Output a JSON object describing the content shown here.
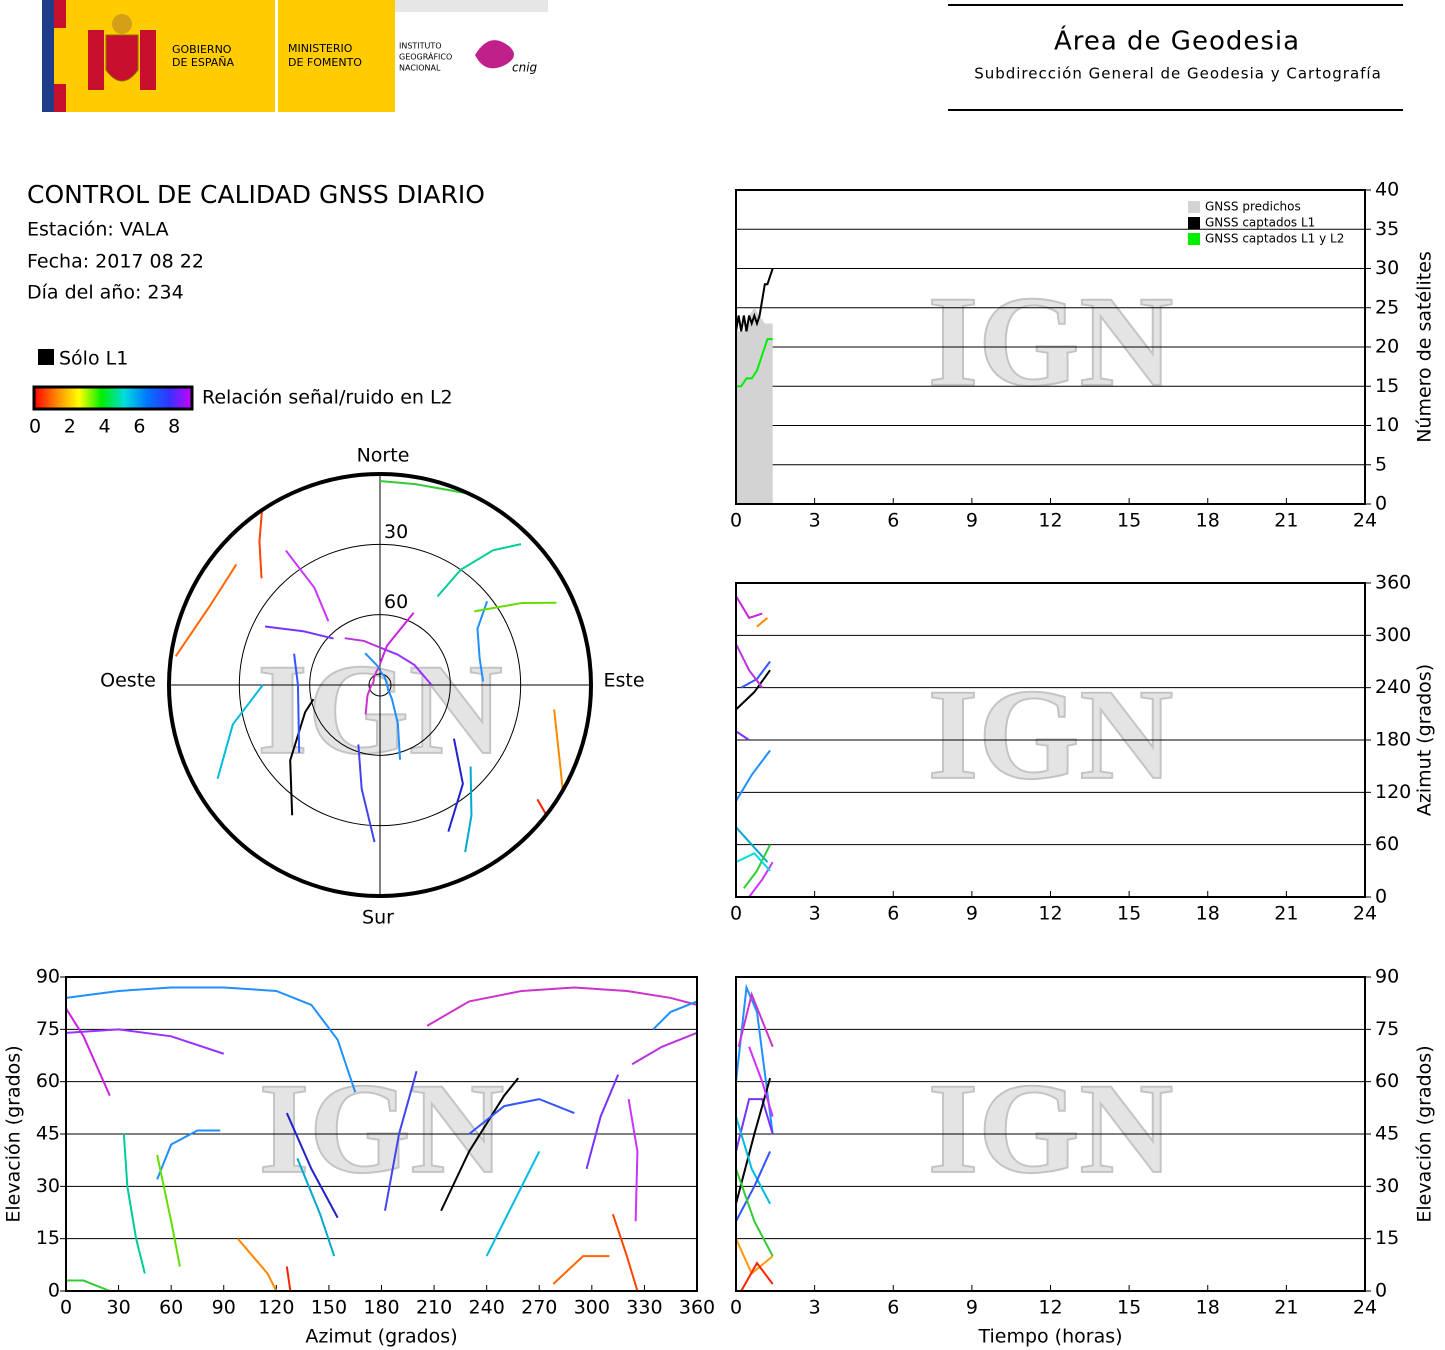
{
  "header": {
    "gobierno": [
      "GOBIERNO",
      "DE ESPAÑA"
    ],
    "ministerio": [
      "MINISTERIO",
      "DE FOMENTO"
    ],
    "instituto": [
      "INSTITUTO",
      "GEOGRÁFICO",
      "NACIONAL"
    ],
    "cnig": "cnig",
    "title": "Área de Geodesia",
    "subtitle": "Subdirección General de Geodesia y Cartografía"
  },
  "info": {
    "title": "CONTROL DE CALIDAD GNSS DIARIO",
    "station": "Estación: VALA",
    "date": "Fecha: 2017 08 22",
    "doy": "Día del año: 234",
    "l1_only": "Sólo L1",
    "snr_label": "Relación señal/ruido en L2",
    "snr_ticks": [
      0,
      2,
      4,
      6,
      8
    ],
    "colorscale": [
      "#ff0000",
      "#ff8800",
      "#ffff00",
      "#00ee00",
      "#00dddd",
      "#0077ff",
      "#3333ff",
      "#cc00ff"
    ]
  },
  "watermark": "IGN",
  "chart_data": [
    {
      "type": "line",
      "ylabel": "Número de satélites",
      "yaxis": "right",
      "xlim": [
        0,
        24
      ],
      "xticks": [
        0,
        3,
        6,
        9,
        12,
        15,
        18,
        21,
        24
      ],
      "ylim": [
        0,
        40
      ],
      "yticks": [
        0,
        5,
        10,
        15,
        20,
        25,
        30,
        35,
        40
      ],
      "grid": true,
      "legend": "upper right",
      "series": [
        {
          "name": "GNSS predichos",
          "color": "#d3d3d3",
          "fill": true,
          "x": [
            0,
            0.1,
            0.3,
            0.5,
            0.7,
            0.9,
            1.1,
            1.3,
            1.4
          ],
          "values": [
            22,
            22,
            22,
            24,
            25,
            24,
            23,
            23,
            23
          ]
        },
        {
          "name": "GNSS captados L1",
          "color": "#000000",
          "x": [
            0,
            0.1,
            0.2,
            0.3,
            0.4,
            0.5,
            0.6,
            0.7,
            0.8,
            0.9,
            1.0,
            1.1,
            1.2,
            1.3,
            1.4
          ],
          "values": [
            22,
            24,
            22,
            24,
            22,
            24,
            23,
            24,
            23,
            24,
            26,
            28,
            28,
            29,
            30
          ]
        },
        {
          "name": "GNSS captados L1 y L2",
          "color": "#00ee00",
          "x": [
            0,
            0.2,
            0.4,
            0.6,
            0.8,
            1.0,
            1.2,
            1.4
          ],
          "values": [
            15,
            15,
            16,
            16,
            17,
            19,
            21,
            21
          ]
        }
      ]
    },
    {
      "type": "line",
      "ylabel": "Azimut (grados)",
      "yaxis": "right",
      "xlim": [
        0,
        24
      ],
      "xticks": [
        0,
        3,
        6,
        9,
        12,
        15,
        18,
        21,
        24
      ],
      "ylim": [
        0,
        360
      ],
      "yticks": [
        0,
        60,
        120,
        180,
        240,
        300,
        360
      ],
      "grid": true,
      "series": [
        {
          "color": "#000000",
          "x": [
            0,
            0.7,
            1.3
          ],
          "values": [
            215,
            235,
            260
          ]
        },
        {
          "color": "#cc22dd",
          "x": [
            0,
            0.5,
            1.0
          ],
          "values": [
            345,
            320,
            325
          ]
        },
        {
          "color": "#3355ff",
          "x": [
            0.2,
            0.8,
            1.3
          ],
          "values": [
            240,
            250,
            270
          ]
        },
        {
          "color": "#bb33dd",
          "x": [
            0,
            0.5,
            1.0
          ],
          "values": [
            290,
            260,
            240
          ]
        },
        {
          "color": "#7733ff",
          "x": [
            0,
            0.5
          ],
          "values": [
            190,
            180
          ]
        },
        {
          "color": "#1e90ff",
          "x": [
            0,
            0.6,
            1.3
          ],
          "values": [
            110,
            140,
            168
          ]
        },
        {
          "color": "#00aacc",
          "x": [
            0,
            0.6,
            1.2
          ],
          "values": [
            80,
            60,
            40
          ]
        },
        {
          "color": "#33cc33",
          "x": [
            0.3,
            0.8,
            1.3
          ],
          "values": [
            10,
            30,
            60
          ]
        },
        {
          "color": "#cc33ff",
          "x": [
            0.5,
            1.0,
            1.4
          ],
          "values": [
            0,
            20,
            40
          ]
        },
        {
          "color": "#ff8800",
          "x": [
            0.8,
            1.2
          ],
          "values": [
            310,
            320
          ]
        },
        {
          "color": "#00dddd",
          "x": [
            0,
            0.7,
            1.3
          ],
          "values": [
            40,
            50,
            30
          ]
        }
      ]
    },
    {
      "type": "polar",
      "directions": [
        "Norte",
        "Este",
        "Sur",
        "Oeste"
      ],
      "rlim": [
        0,
        90
      ],
      "rticks": [
        30,
        60
      ],
      "series": [
        {
          "color": "#1e90ff",
          "x": [
            0,
            30,
            60,
            90,
            120,
            140,
            155,
            165
          ],
          "values": [
            84,
            86,
            87,
            87,
            86,
            82,
            72,
            57
          ]
        },
        {
          "color": "#cc33cc",
          "x": [
            206,
            230,
            260,
            290,
            320,
            345,
            360
          ],
          "values": [
            76,
            83,
            86,
            87,
            86,
            84,
            82
          ]
        },
        {
          "color": "#cc22dd",
          "x": [
            0,
            10,
            25
          ],
          "values": [
            81,
            73,
            56
          ]
        },
        {
          "color": "#9933ff",
          "x": [
            0,
            30,
            60,
            90
          ],
          "values": [
            74,
            75,
            73,
            68
          ]
        },
        {
          "color": "#1e90ff",
          "x": [
            335,
            345,
            360
          ],
          "values": [
            75,
            80,
            83
          ]
        },
        {
          "color": "#bb33dd",
          "x": [
            323,
            340,
            360
          ],
          "values": [
            65,
            70,
            74
          ]
        },
        {
          "color": "#000000",
          "x": [
            214,
            230,
            250,
            258
          ],
          "values": [
            23,
            40,
            56,
            61
          ]
        },
        {
          "color": "#3355ff",
          "x": [
            230,
            250,
            270,
            290
          ],
          "values": [
            45,
            53,
            55,
            51
          ]
        },
        {
          "color": "#2222cc",
          "x": [
            126,
            140,
            155
          ],
          "values": [
            51,
            35,
            21
          ]
        },
        {
          "color": "#4444ee",
          "x": [
            182,
            190,
            200
          ],
          "values": [
            23,
            45,
            63
          ]
        },
        {
          "color": "#1e90ff",
          "x": [
            52,
            60,
            75,
            88
          ],
          "values": [
            32,
            42,
            46,
            46
          ]
        },
        {
          "color": "#00cc99",
          "x": [
            33,
            35,
            40,
            45
          ],
          "values": [
            45,
            30,
            15,
            5
          ]
        },
        {
          "color": "#66dd00",
          "x": [
            52,
            60,
            65
          ],
          "values": [
            39,
            20,
            7
          ]
        },
        {
          "color": "#00bbdd",
          "x": [
            240,
            255,
            270
          ],
          "values": [
            10,
            25,
            40
          ]
        },
        {
          "color": "#7733ff",
          "x": [
            297,
            305,
            315
          ],
          "values": [
            35,
            50,
            62
          ]
        },
        {
          "color": "#cc33ff",
          "x": [
            321,
            326,
            325
          ],
          "values": [
            55,
            40,
            20
          ]
        },
        {
          "color": "#ff4400",
          "x": [
            312,
            320,
            326
          ],
          "values": [
            22,
            10,
            0
          ]
        },
        {
          "color": "#ff6600",
          "x": [
            278,
            295,
            310
          ],
          "values": [
            2,
            10,
            10
          ]
        },
        {
          "color": "#33cc33",
          "x": [
            0,
            10,
            25
          ],
          "values": [
            3,
            3,
            0
          ]
        },
        {
          "color": "#ff8800",
          "x": [
            98,
            115,
            120
          ],
          "values": [
            15,
            5,
            0
          ]
        },
        {
          "color": "#ff2200",
          "x": [
            126,
            128
          ],
          "values": [
            7,
            0
          ]
        },
        {
          "color": "#00aacc",
          "x": [
            132,
            145,
            153
          ],
          "values": [
            38,
            22,
            10
          ]
        }
      ]
    },
    {
      "type": "line",
      "xlabel": "Azimut (grados)",
      "ylabel": "Elevación (grados)",
      "yaxis": "left",
      "xlim": [
        0,
        360
      ],
      "xticks": [
        0,
        30,
        60,
        90,
        120,
        150,
        180,
        210,
        240,
        270,
        300,
        330,
        360
      ],
      "ylim": [
        0,
        90
      ],
      "yticks": [
        0,
        15,
        30,
        45,
        60,
        75,
        90
      ],
      "grid": true,
      "series": [
        {
          "color": "#1e90ff",
          "x": [
            0,
            30,
            60,
            90,
            120,
            140,
            155,
            165
          ],
          "values": [
            84,
            86,
            87,
            87,
            86,
            82,
            72,
            57
          ]
        },
        {
          "color": "#cc33cc",
          "x": [
            206,
            230,
            260,
            290,
            320,
            345,
            360
          ],
          "values": [
            76,
            83,
            86,
            87,
            86,
            84,
            82
          ]
        },
        {
          "color": "#cc22dd",
          "x": [
            0,
            10,
            25
          ],
          "values": [
            81,
            73,
            56
          ]
        },
        {
          "color": "#9933ff",
          "x": [
            0,
            30,
            60,
            90
          ],
          "values": [
            74,
            75,
            73,
            68
          ]
        },
        {
          "color": "#1e90ff",
          "x": [
            335,
            345,
            360
          ],
          "values": [
            75,
            80,
            83
          ]
        },
        {
          "color": "#bb33dd",
          "x": [
            323,
            340,
            360
          ],
          "values": [
            65,
            70,
            74
          ]
        },
        {
          "color": "#000000",
          "x": [
            214,
            230,
            250,
            258
          ],
          "values": [
            23,
            40,
            56,
            61
          ]
        },
        {
          "color": "#3355ff",
          "x": [
            230,
            250,
            270,
            290
          ],
          "values": [
            45,
            53,
            55,
            51
          ]
        },
        {
          "color": "#2222cc",
          "x": [
            126,
            140,
            155
          ],
          "values": [
            51,
            35,
            21
          ]
        },
        {
          "color": "#4444ee",
          "x": [
            182,
            190,
            200
          ],
          "values": [
            23,
            45,
            63
          ]
        },
        {
          "color": "#1e90ff",
          "x": [
            52,
            60,
            75,
            88
          ],
          "values": [
            32,
            42,
            46,
            46
          ]
        },
        {
          "color": "#00cc99",
          "x": [
            33,
            35,
            40,
            45
          ],
          "values": [
            45,
            30,
            15,
            5
          ]
        },
        {
          "color": "#66dd00",
          "x": [
            52,
            60,
            65
          ],
          "values": [
            39,
            20,
            7
          ]
        },
        {
          "color": "#00bbdd",
          "x": [
            240,
            255,
            270
          ],
          "values": [
            10,
            25,
            40
          ]
        },
        {
          "color": "#7733ff",
          "x": [
            297,
            305,
            315
          ],
          "values": [
            35,
            50,
            62
          ]
        },
        {
          "color": "#cc33ff",
          "x": [
            321,
            326,
            325
          ],
          "values": [
            55,
            40,
            20
          ]
        },
        {
          "color": "#ff4400",
          "x": [
            312,
            320,
            326
          ],
          "values": [
            22,
            10,
            0
          ]
        },
        {
          "color": "#ff6600",
          "x": [
            278,
            295,
            310
          ],
          "values": [
            2,
            10,
            10
          ]
        },
        {
          "color": "#33cc33",
          "x": [
            0,
            10,
            25
          ],
          "values": [
            3,
            3,
            0
          ]
        },
        {
          "color": "#ff8800",
          "x": [
            98,
            115,
            120
          ],
          "values": [
            15,
            5,
            0
          ]
        },
        {
          "color": "#ff2200",
          "x": [
            126,
            128
          ],
          "values": [
            7,
            0
          ]
        },
        {
          "color": "#00aacc",
          "x": [
            132,
            145,
            153
          ],
          "values": [
            38,
            22,
            10
          ]
        }
      ]
    },
    {
      "type": "line",
      "xlabel": "Tiempo (horas)",
      "ylabel": "Elevación (grados)",
      "yaxis": "right",
      "xlim": [
        0,
        24
      ],
      "xticks": [
        0,
        3,
        6,
        9,
        12,
        15,
        18,
        21,
        24
      ],
      "ylim": [
        0,
        90
      ],
      "yticks": [
        0,
        15,
        30,
        45,
        60,
        75,
        90
      ],
      "grid": true,
      "series": [
        {
          "color": "#1e90ff",
          "x": [
            0,
            0.4,
            0.8,
            1.4
          ],
          "values": [
            60,
            87,
            80,
            45
          ]
        },
        {
          "color": "#cc33cc",
          "x": [
            0.1,
            0.6,
            1.4
          ],
          "values": [
            70,
            85,
            70
          ]
        },
        {
          "color": "#7733ff",
          "x": [
            0,
            0.5,
            1.0,
            1.4
          ],
          "values": [
            40,
            55,
            55,
            45
          ]
        },
        {
          "color": "#000000",
          "x": [
            0,
            0.7,
            1.3
          ],
          "values": [
            25,
            45,
            61
          ]
        },
        {
          "color": "#00bbdd",
          "x": [
            0,
            0.6,
            1.3
          ],
          "values": [
            50,
            35,
            25
          ]
        },
        {
          "color": "#3355ff",
          "x": [
            0,
            0.7,
            1.3
          ],
          "values": [
            20,
            30,
            40
          ]
        },
        {
          "color": "#33cc33",
          "x": [
            0,
            0.7,
            1.4
          ],
          "values": [
            35,
            20,
            10
          ]
        },
        {
          "color": "#ff9900",
          "x": [
            0,
            0.6,
            1.4
          ],
          "values": [
            15,
            5,
            10
          ]
        },
        {
          "color": "#ff2200",
          "x": [
            0.2,
            0.8,
            1.4
          ],
          "values": [
            0,
            8,
            2
          ]
        },
        {
          "color": "#cc33ff",
          "x": [
            0.5,
            1.0,
            1.4
          ],
          "values": [
            70,
            60,
            50
          ]
        }
      ]
    }
  ]
}
